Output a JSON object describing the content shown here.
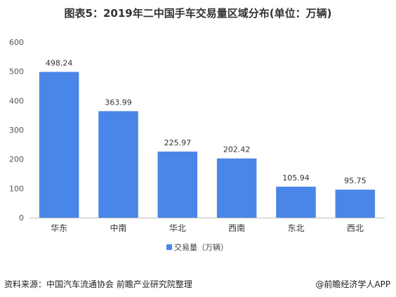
{
  "chart_data": {
    "type": "bar",
    "title": "图表5：2019年二中国手车交易量区域分布(单位：万辆)",
    "categories": [
      "华东",
      "中南",
      "华北",
      "西南",
      "东北",
      "西北"
    ],
    "series": [
      {
        "name": "交易量（万辆）",
        "values": [
          498.24,
          363.99,
          225.97,
          202.42,
          105.94,
          95.75
        ]
      }
    ],
    "data_labels": [
      "498.24",
      "363.99",
      "225.97",
      "202.42",
      "105.94",
      "95.75"
    ],
    "yticks": [
      0,
      100,
      200,
      300,
      400,
      500,
      600
    ],
    "ylim": [
      0,
      600
    ],
    "grid": false,
    "legend": "bottom"
  },
  "colors": {
    "bar": "#4a86e8",
    "axis": "#bfbfbf"
  },
  "footer": {
    "source": "资料来源：中国汽车流通协会 前瞻产业研究院整理",
    "credit": "@前瞻经济学人APP"
  }
}
